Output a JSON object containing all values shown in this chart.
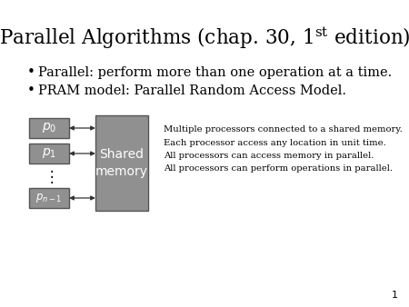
{
  "title_part1": "Parallel Algorithms (chap. 30, 1",
  "title_super": "st",
  "title_part2": " edition)",
  "bullet1": "Parallel: perform more than one operation at a time.",
  "bullet2": "PRAM model: Parallel Random Access Model.",
  "desc_lines": [
    "Multiple processors connected to a shared memory.",
    "Each processor access any location in unit time.",
    "All processors can access memory in parallel.",
    "All processors can perform operations in parallel."
  ],
  "shared_memory_label": "Shared\nmemory",
  "bg_color": "#ffffff",
  "box_color": "#909090",
  "box_edge_color": "#555555",
  "text_color": "#000000",
  "page_number": "1",
  "fig_width": 4.5,
  "fig_height": 3.38,
  "dpi": 100
}
